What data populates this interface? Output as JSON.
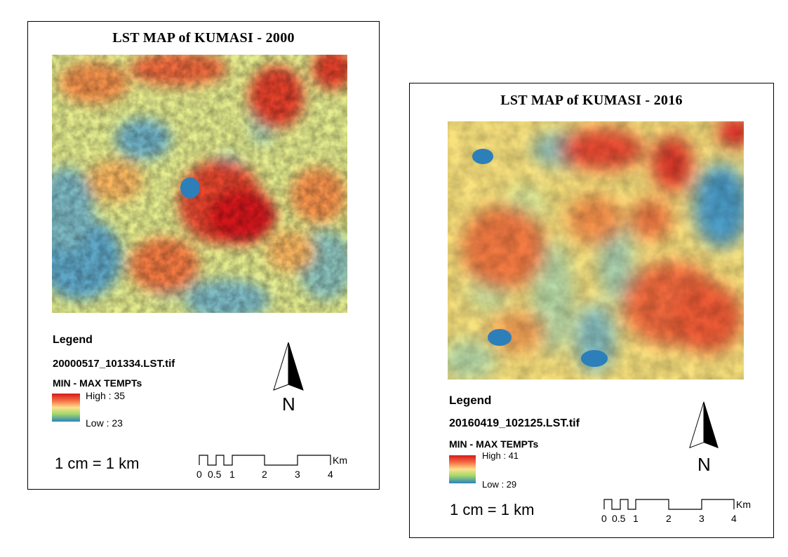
{
  "maps": [
    {
      "title": "LST MAP of KUMASI - 2000",
      "legend_title": "Legend",
      "layer_file": "20000517_101334.LST.tif",
      "field_label": "MIN - MAX TEMPTs",
      "high_label": "High : 35",
      "low_label": "Low : 23",
      "high_value": 35,
      "low_value": 23,
      "scale_text": "1 cm = 1 km",
      "north_label": "N",
      "scale_ticks": [
        "0",
        "0.5",
        "1",
        "2",
        "3",
        "4"
      ],
      "scale_unit": "Km"
    },
    {
      "title": "LST MAP of KUMASI - 2016",
      "legend_title": "Legend",
      "layer_file": "20160419_102125.LST.tif",
      "field_label": "MIN - MAX TEMPTs",
      "high_label": "High : 41",
      "low_label": "Low : 29",
      "high_value": 41,
      "low_value": 29,
      "scale_text": "1 cm = 1 km",
      "north_label": "N",
      "scale_ticks": [
        "0",
        "0.5",
        "1",
        "2",
        "3",
        "4"
      ],
      "scale_unit": "Km"
    }
  ],
  "colors": {
    "high": "#d7191c",
    "mid_high": "#f46d43",
    "mid": "#fee08b",
    "mid_low": "#a6d96a",
    "low": "#2b83ba",
    "water": "#2c7fb8"
  }
}
